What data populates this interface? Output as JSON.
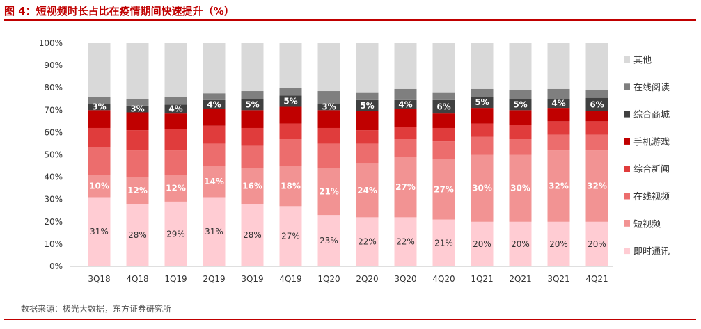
{
  "figure": {
    "title": "图 4：短视频时长占比在疫情期间快速提升（%）",
    "source": "数据来源：极光大数据，东方证券研究所"
  },
  "chart_data": {
    "type": "bar",
    "stacked": true,
    "title": "图 4：短视频时长占比在疫情期间快速提升（%）",
    "xlabel": "",
    "ylabel": "",
    "ylim": [
      0,
      100
    ],
    "yticks": [
      "0%",
      "10%",
      "20%",
      "30%",
      "40%",
      "50%",
      "60%",
      "70%",
      "80%",
      "90%",
      "100%"
    ],
    "legend_position": "right",
    "categories": [
      "3Q18",
      "4Q18",
      "1Q19",
      "2Q19",
      "3Q19",
      "4Q19",
      "1Q20",
      "2Q20",
      "3Q20",
      "4Q20",
      "1Q21",
      "2Q21",
      "3Q21",
      "4Q21"
    ],
    "series": [
      {
        "name": "即时通讯",
        "color": "#ffccd3",
        "values": [
          31,
          28,
          29,
          31,
          28,
          27,
          23,
          22,
          22,
          21,
          20,
          20,
          20,
          20
        ],
        "labeled": true,
        "label_color": "#333333"
      },
      {
        "name": "短视频",
        "color": "#f29393",
        "values": [
          10,
          12,
          12,
          14,
          16,
          18,
          21,
          24,
          27,
          27,
          30,
          30,
          32,
          32
        ],
        "labeled": true,
        "label_color": "#ffffff"
      },
      {
        "name": "在线视频",
        "color": "#ec6d6d",
        "values": [
          12.5,
          12,
          11,
          10,
          10,
          12,
          11,
          9,
          8,
          8,
          8,
          7,
          7,
          7
        ],
        "labeled": false
      },
      {
        "name": "综合新闻",
        "color": "#e03c3c",
        "values": [
          8.5,
          9,
          9.5,
          8,
          8,
          7,
          7,
          6,
          5.5,
          6,
          6,
          6.5,
          6,
          6
        ],
        "labeled": false
      },
      {
        "name": "手机游戏",
        "color": "#c00000",
        "values": [
          8,
          8,
          7,
          7.5,
          8,
          7.5,
          8,
          8.5,
          8,
          6.5,
          7,
          6.5,
          6,
          4.5
        ],
        "labeled": false
      },
      {
        "name": "综合商城",
        "color": "#404040",
        "values": [
          3,
          3,
          4,
          4,
          5,
          5,
          3,
          5,
          4,
          6,
          5,
          5,
          4,
          6
        ],
        "labeled": true,
        "label_color": "#ffffff"
      },
      {
        "name": "在线阅读",
        "color": "#7f7f7f",
        "values": [
          3,
          3,
          3.5,
          3,
          3.5,
          3.5,
          5.5,
          3.5,
          5,
          3.5,
          3.5,
          4,
          4.5,
          3.5
        ],
        "labeled": false
      },
      {
        "name": "其他",
        "color": "#d9d9d9",
        "values": [
          24,
          25,
          24,
          22.5,
          21.5,
          20,
          21.5,
          22,
          20.5,
          22,
          20.5,
          21,
          20.5,
          21
        ],
        "labeled": false
      }
    ]
  }
}
